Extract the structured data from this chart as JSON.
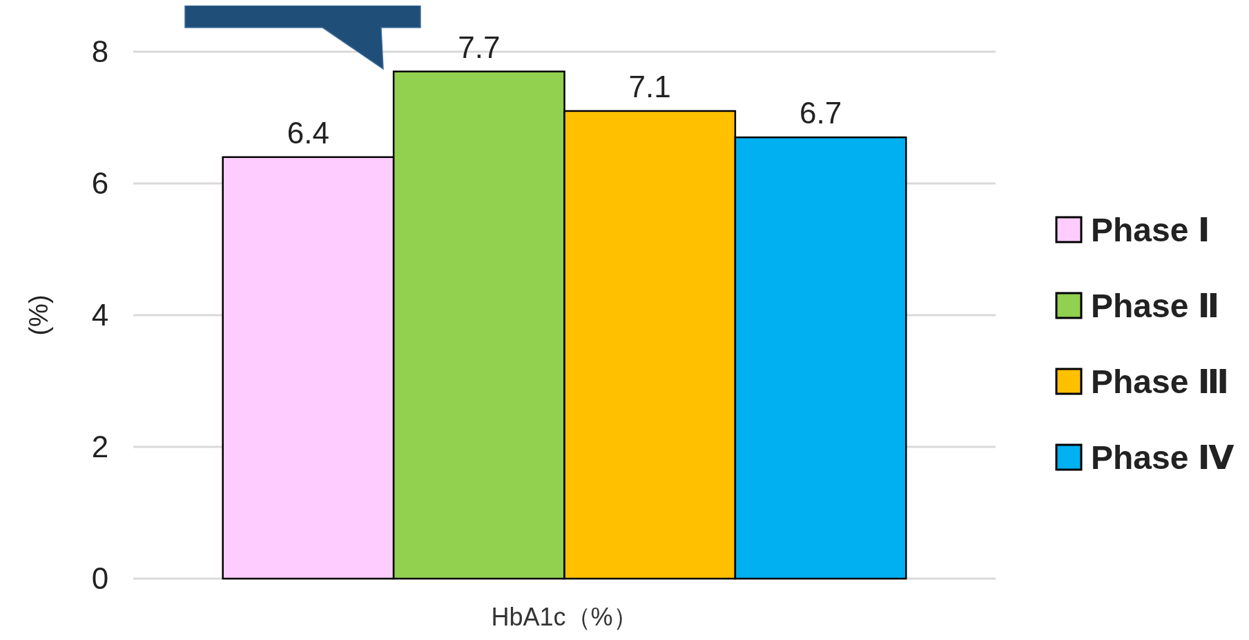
{
  "chart_data": {
    "type": "bar",
    "categories": [
      "HbA1c（%）"
    ],
    "ylabel": "(%)",
    "series": [
      {
        "name": "Phase Ⅰ",
        "color": "#ffccff",
        "values": [
          6.4
        ]
      },
      {
        "name": "Phase Ⅱ",
        "color": "#92d050",
        "values": [
          7.7
        ]
      },
      {
        "name": "Phase Ⅲ",
        "color": "#ffc000",
        "values": [
          7.1
        ]
      },
      {
        "name": "Phase Ⅳ",
        "color": "#00b0f0",
        "values": [
          6.7
        ]
      }
    ],
    "ylim": [
      0,
      8
    ],
    "yticks": [
      0,
      2,
      4,
      6,
      8
    ],
    "grid": "y",
    "legend": "right",
    "data_labels": true
  }
}
